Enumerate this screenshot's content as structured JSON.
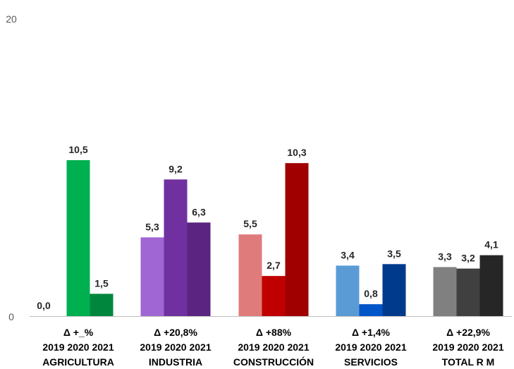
{
  "chart_data": {
    "type": "bar",
    "ylim": [
      0,
      20
    ],
    "y_ticks": [
      "0",
      "20"
    ],
    "grid": false,
    "groups": [
      {
        "name": "AGRICULTURA",
        "delta": "Δ +_%",
        "years": "2019 2020 2021",
        "values": [
          0.0,
          10.5,
          1.5
        ],
        "labels": [
          "0,0",
          "10,5",
          "1,5"
        ],
        "colors": [
          "#00b050",
          "#00b050",
          "#00873d"
        ]
      },
      {
        "name": "INDUSTRIA",
        "delta": "Δ +20,8%",
        "years": "2019 2020 2021",
        "values": [
          5.3,
          9.2,
          6.3
        ],
        "labels": [
          "5,3",
          "9,2",
          "6,3"
        ],
        "colors": [
          "#a066d3",
          "#7030a0",
          "#5b2480"
        ]
      },
      {
        "name": "CONSTRUCCIÓN",
        "delta": "Δ +88%",
        "years": "2019 2020 2021",
        "values": [
          5.5,
          2.7,
          10.3
        ],
        "labels": [
          "5,5",
          "2,7",
          "10,3"
        ],
        "colors": [
          "#e07b7b",
          "#c00000",
          "#a00000"
        ]
      },
      {
        "name": "SERVICIOS",
        "delta": "Δ +1,4%",
        "years": "2019 2020 2021",
        "values": [
          3.4,
          0.8,
          3.5
        ],
        "labels": [
          "3,4",
          "0,8",
          "3,5"
        ],
        "colors": [
          "#5b9bd5",
          "#0055c8",
          "#003a8c"
        ]
      },
      {
        "name": "TOTAL R M",
        "delta": "Δ +22,9%",
        "years": "2019 2020 2021",
        "values": [
          3.3,
          3.2,
          4.1
        ],
        "labels": [
          "3,3",
          "3,2",
          "4,1"
        ],
        "colors": [
          "#808080",
          "#404040",
          "#262626"
        ]
      }
    ]
  }
}
